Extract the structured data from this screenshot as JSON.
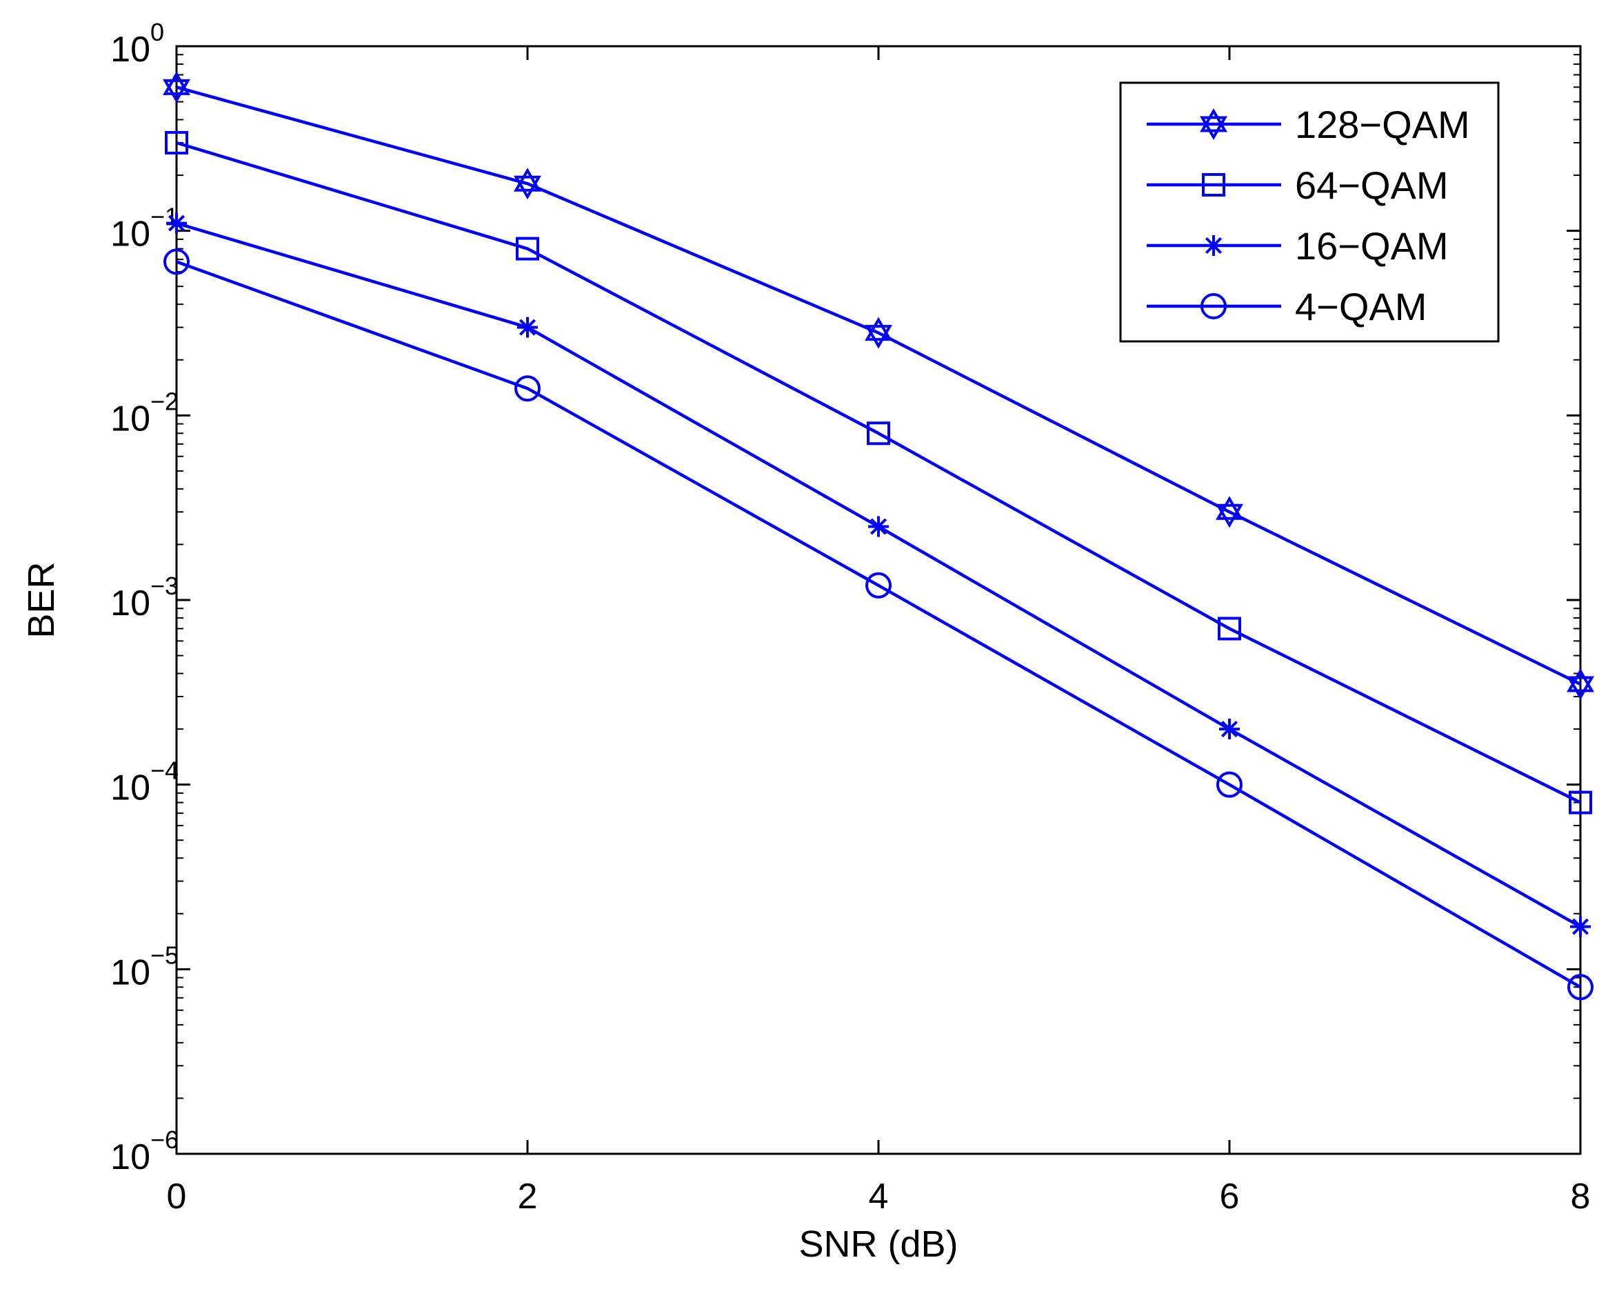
{
  "chart_data": {
    "type": "line",
    "title": "",
    "xlabel": "SNR (dB)",
    "ylabel": "BER",
    "yscale": "log",
    "xlim": [
      0,
      8
    ],
    "ylim": [
      1e-06,
      1
    ],
    "x": [
      0,
      2,
      4,
      6,
      8
    ],
    "xticks": [
      "0",
      "2",
      "4",
      "6",
      "8"
    ],
    "yticks": [
      {
        "base": "10",
        "exp": "0",
        "value": 1
      },
      {
        "base": "10",
        "exp": "−1",
        "value": 0.1
      },
      {
        "base": "10",
        "exp": "−2",
        "value": 0.01
      },
      {
        "base": "10",
        "exp": "−3",
        "value": 0.001
      },
      {
        "base": "10",
        "exp": "−4",
        "value": 0.0001
      },
      {
        "base": "10",
        "exp": "−5",
        "value": 1e-05
      },
      {
        "base": "10",
        "exp": "−6",
        "value": 1e-06
      }
    ],
    "grid": false,
    "legend_position": "top-right",
    "line_color": "#0000ff",
    "series": [
      {
        "name": "128−QAM",
        "marker": "hexagram",
        "values": [
          0.6,
          0.18,
          0.028,
          0.003,
          0.00035
        ]
      },
      {
        "name": "64−QAM",
        "marker": "square",
        "values": [
          0.3,
          0.08,
          0.008,
          0.0007,
          8e-05
        ]
      },
      {
        "name": "16−QAM",
        "marker": "asterisk",
        "values": [
          0.11,
          0.03,
          0.0025,
          0.0002,
          1.7e-05
        ]
      },
      {
        "name": "4−QAM",
        "marker": "circle",
        "values": [
          0.068,
          0.014,
          0.0012,
          0.0001,
          8e-06
        ]
      }
    ]
  }
}
